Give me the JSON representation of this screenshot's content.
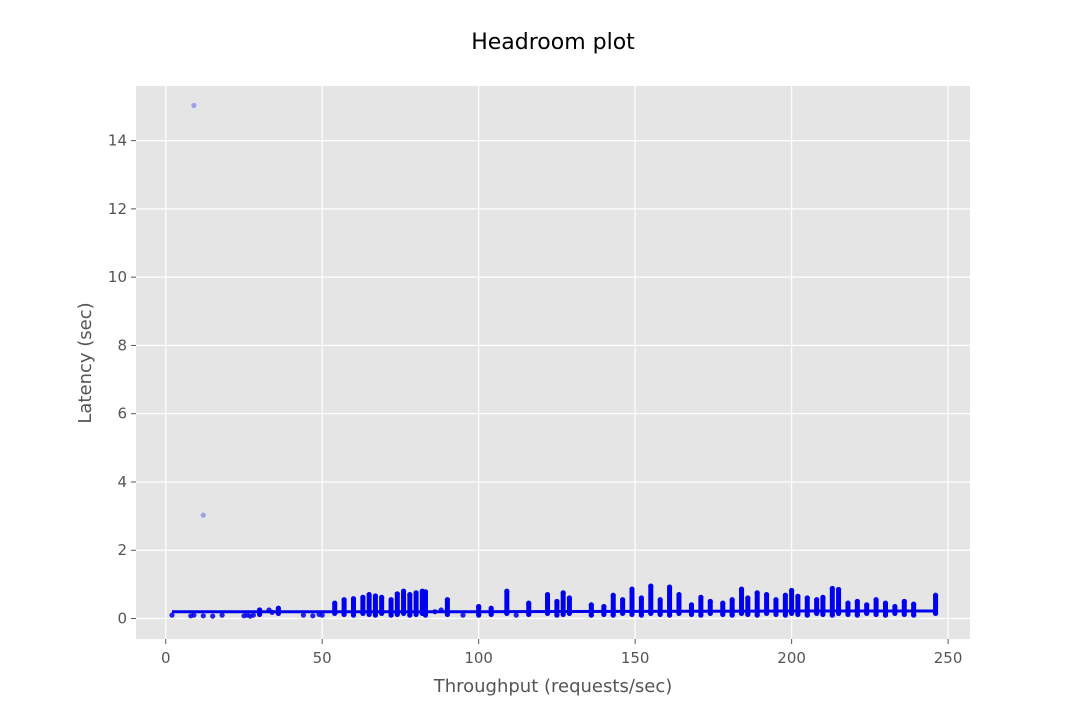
{
  "chart_data": {
    "type": "scatter",
    "title": "Headroom plot",
    "xlabel": "Throughput (requests/sec)",
    "ylabel": "Latency (sec)",
    "xlim": [
      -9.5,
      257
    ],
    "ylim": [
      -0.6,
      15.6
    ],
    "xticks": [
      0,
      50,
      100,
      150,
      200,
      250
    ],
    "yticks": [
      0,
      2,
      4,
      6,
      8,
      10,
      12,
      14
    ],
    "grid": true,
    "background": "#e5e5e5",
    "point_color": "#0000ee",
    "series": [
      {
        "points": [
          [
            9,
            15.03
          ],
          [
            12,
            3.03
          ],
          [
            2,
            0.1
          ],
          [
            8,
            0.08
          ],
          [
            9,
            0.1
          ],
          [
            12,
            0.08
          ],
          [
            15,
            0.07
          ],
          [
            18,
            0.1
          ],
          [
            25,
            0.08
          ],
          [
            26,
            0.1
          ],
          [
            27,
            0.07
          ],
          [
            28,
            0.1
          ],
          [
            30,
            0.25
          ],
          [
            30,
            0.12
          ],
          [
            33,
            0.25
          ],
          [
            34,
            0.18
          ],
          [
            36,
            0.3
          ],
          [
            36,
            0.15
          ],
          [
            44,
            0.1
          ],
          [
            47,
            0.08
          ],
          [
            49,
            0.12
          ],
          [
            50,
            0.1
          ],
          [
            54,
            0.45
          ],
          [
            54,
            0.15
          ],
          [
            57,
            0.55
          ],
          [
            57,
            0.12
          ],
          [
            60,
            0.58
          ],
          [
            60,
            0.1
          ],
          [
            63,
            0.62
          ],
          [
            63,
            0.15
          ],
          [
            65,
            0.7
          ],
          [
            65,
            0.12
          ],
          [
            67,
            0.66
          ],
          [
            67,
            0.1
          ],
          [
            69,
            0.62
          ],
          [
            69,
            0.15
          ],
          [
            72,
            0.55
          ],
          [
            72,
            0.1
          ],
          [
            74,
            0.72
          ],
          [
            74,
            0.12
          ],
          [
            76,
            0.8
          ],
          [
            76,
            0.15
          ],
          [
            78,
            0.7
          ],
          [
            78,
            0.1
          ],
          [
            80,
            0.75
          ],
          [
            80,
            0.12
          ],
          [
            82,
            0.8
          ],
          [
            82,
            0.15
          ],
          [
            83,
            0.78
          ],
          [
            83,
            0.1
          ],
          [
            86,
            0.2
          ],
          [
            88,
            0.25
          ],
          [
            90,
            0.55
          ],
          [
            90,
            0.12
          ],
          [
            95,
            0.1
          ],
          [
            100,
            0.35
          ],
          [
            100,
            0.1
          ],
          [
            104,
            0.3
          ],
          [
            104,
            0.12
          ],
          [
            109,
            0.8
          ],
          [
            109,
            0.15
          ],
          [
            112,
            0.1
          ],
          [
            116,
            0.45
          ],
          [
            116,
            0.12
          ],
          [
            122,
            0.7
          ],
          [
            122,
            0.15
          ],
          [
            125,
            0.5
          ],
          [
            125,
            0.1
          ],
          [
            127,
            0.75
          ],
          [
            127,
            0.12
          ],
          [
            129,
            0.6
          ],
          [
            129,
            0.15
          ],
          [
            136,
            0.4
          ],
          [
            136,
            0.1
          ],
          [
            140,
            0.35
          ],
          [
            140,
            0.12
          ],
          [
            143,
            0.68
          ],
          [
            143,
            0.1
          ],
          [
            146,
            0.55
          ],
          [
            146,
            0.15
          ],
          [
            149,
            0.86
          ],
          [
            149,
            0.12
          ],
          [
            152,
            0.6
          ],
          [
            152,
            0.1
          ],
          [
            155,
            0.95
          ],
          [
            155,
            0.15
          ],
          [
            158,
            0.55
          ],
          [
            158,
            0.12
          ],
          [
            161,
            0.92
          ],
          [
            161,
            0.1
          ],
          [
            164,
            0.7
          ],
          [
            164,
            0.15
          ],
          [
            168,
            0.4
          ],
          [
            168,
            0.12
          ],
          [
            171,
            0.62
          ],
          [
            171,
            0.1
          ],
          [
            174,
            0.5
          ],
          [
            174,
            0.15
          ],
          [
            178,
            0.45
          ],
          [
            178,
            0.12
          ],
          [
            181,
            0.55
          ],
          [
            181,
            0.1
          ],
          [
            184,
            0.86
          ],
          [
            184,
            0.15
          ],
          [
            186,
            0.6
          ],
          [
            186,
            0.12
          ],
          [
            189,
            0.75
          ],
          [
            189,
            0.1
          ],
          [
            192,
            0.7
          ],
          [
            192,
            0.15
          ],
          [
            195,
            0.55
          ],
          [
            195,
            0.12
          ],
          [
            198,
            0.68
          ],
          [
            198,
            0.1
          ],
          [
            200,
            0.82
          ],
          [
            200,
            0.15
          ],
          [
            202,
            0.65
          ],
          [
            202,
            0.12
          ],
          [
            205,
            0.6
          ],
          [
            205,
            0.1
          ],
          [
            208,
            0.55
          ],
          [
            208,
            0.15
          ],
          [
            210,
            0.62
          ],
          [
            210,
            0.12
          ],
          [
            213,
            0.88
          ],
          [
            213,
            0.1
          ],
          [
            215,
            0.85
          ],
          [
            215,
            0.15
          ],
          [
            218,
            0.45
          ],
          [
            218,
            0.12
          ],
          [
            221,
            0.5
          ],
          [
            221,
            0.1
          ],
          [
            224,
            0.4
          ],
          [
            224,
            0.15
          ],
          [
            227,
            0.55
          ],
          [
            227,
            0.12
          ],
          [
            230,
            0.45
          ],
          [
            230,
            0.1
          ],
          [
            233,
            0.35
          ],
          [
            233,
            0.15
          ],
          [
            236,
            0.5
          ],
          [
            236,
            0.12
          ],
          [
            239,
            0.42
          ],
          [
            239,
            0.1
          ],
          [
            246,
            0.68
          ],
          [
            246,
            0.15
          ]
        ]
      },
      {
        "type": "line",
        "points": [
          [
            2,
            0.2
          ],
          [
            50,
            0.2
          ],
          [
            100,
            0.2
          ],
          [
            150,
            0.21
          ],
          [
            200,
            0.22
          ],
          [
            246,
            0.22
          ]
        ]
      }
    ]
  }
}
